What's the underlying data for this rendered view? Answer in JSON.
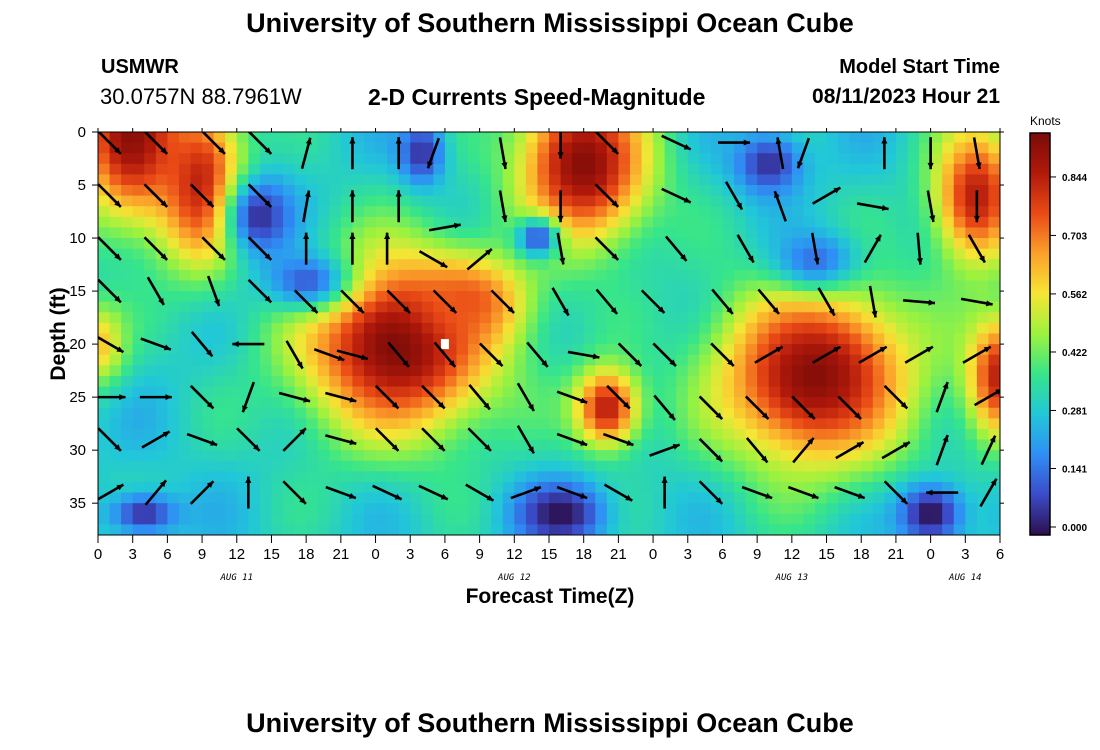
{
  "header": {
    "title": "University of Southern Mississippi Ocean Cube",
    "station": "USMWR",
    "coordinates": "30.0757N  88.7961W",
    "subtitle": "2-D Currents Speed-Magnitude",
    "model_start_label": "Model Start Time",
    "model_start_value": "08/11/2023 Hour 21"
  },
  "footer": {
    "title": "University of Southern Mississippi Ocean Cube"
  },
  "chart_data": {
    "type": "heatmap",
    "xlabel": "Forecast Time(Z)",
    "ylabel": "Depth (ft)",
    "x_tick_labels": [
      "0",
      "3",
      "6",
      "9",
      "12",
      "15",
      "18",
      "21",
      "0",
      "3",
      "6",
      "9",
      "12",
      "15",
      "18",
      "21",
      "0",
      "3",
      "6",
      "9",
      "12",
      "15",
      "18",
      "21",
      "0",
      "3",
      "6"
    ],
    "day_labels": [
      {
        "label": "AUG 11",
        "at_tick": 4
      },
      {
        "label": "AUG 12",
        "at_tick": 12
      },
      {
        "label": "AUG 13",
        "at_tick": 20
      },
      {
        "label": "AUG 14",
        "at_tick": 25
      }
    ],
    "xlim_hours": [
      0,
      78
    ],
    "y_ticks": [
      0,
      5,
      10,
      15,
      20,
      25,
      30,
      35
    ],
    "ylim": [
      0,
      38
    ],
    "y_inverted": true,
    "colorbar": {
      "unit": "Knots",
      "ticks": [
        "0.844",
        "0.703",
        "0.562",
        "0.422",
        "0.281",
        "0.141",
        "0.000"
      ],
      "tick_values": [
        0.844,
        0.703,
        0.562,
        0.422,
        0.281,
        0.141,
        0.0
      ],
      "range": [
        0,
        0.95
      ],
      "colors": [
        "#2c0f4d",
        "#3b4bc9",
        "#2f8ef5",
        "#21c7d8",
        "#37e58a",
        "#9cf23e",
        "#f6e534",
        "#fba12b",
        "#ea4a16",
        "#b2190b",
        "#7a0b07"
      ]
    },
    "hot_spots": [
      {
        "t": 3,
        "d": 0,
        "speed": 0.93,
        "rt": 5,
        "rd": 9
      },
      {
        "t": 9,
        "d": 5,
        "speed": 0.85,
        "rt": 4,
        "rd": 8
      },
      {
        "t": 0,
        "d": 20,
        "speed": 0.62,
        "rt": 2.5,
        "rd": 4
      },
      {
        "t": 26,
        "d": 20,
        "speed": 0.95,
        "rt": 9,
        "rd": 9
      },
      {
        "t": 32,
        "d": 16,
        "speed": 0.75,
        "rt": 5,
        "rd": 4
      },
      {
        "t": 42,
        "d": 3,
        "speed": 0.93,
        "rt": 6,
        "rd": 8
      },
      {
        "t": 44,
        "d": 26,
        "speed": 0.85,
        "rt": 3,
        "rd": 4
      },
      {
        "t": 62,
        "d": 23,
        "speed": 0.93,
        "rt": 9,
        "rd": 9
      },
      {
        "t": 76,
        "d": 6,
        "speed": 0.85,
        "rt": 4,
        "rd": 7
      },
      {
        "t": 78,
        "d": 23,
        "speed": 0.85,
        "rt": 3,
        "rd": 6
      },
      {
        "t": 14,
        "d": 8,
        "speed": 0.05,
        "rt": 3,
        "rd": 4
      },
      {
        "t": 18,
        "d": 14,
        "speed": 0.12,
        "rt": 4,
        "rd": 3
      },
      {
        "t": 28,
        "d": 2,
        "speed": 0.05,
        "rt": 2,
        "rd": 3
      },
      {
        "t": 38,
        "d": 10,
        "speed": 0.1,
        "rt": 2,
        "rd": 2
      },
      {
        "t": 40,
        "d": 36,
        "speed": 0.0,
        "rt": 4,
        "rd": 3
      },
      {
        "t": 58,
        "d": 3,
        "speed": 0.05,
        "rt": 3,
        "rd": 3
      },
      {
        "t": 72,
        "d": 36,
        "speed": 0.0,
        "rt": 3,
        "rd": 3
      },
      {
        "t": 4,
        "d": 36,
        "speed": 0.05,
        "rt": 3,
        "rd": 2
      },
      {
        "t": 62,
        "d": 12,
        "speed": 0.15,
        "rt": 4,
        "rd": 3
      }
    ],
    "vectors": [
      {
        "t": 1,
        "d": 1,
        "dir": 135
      },
      {
        "t": 5,
        "d": 1,
        "dir": 135
      },
      {
        "t": 10,
        "d": 1,
        "dir": 135
      },
      {
        "t": 14,
        "d": 1,
        "dir": 135
      },
      {
        "t": 18,
        "d": 2,
        "dir": 15
      },
      {
        "t": 22,
        "d": 2,
        "dir": 0
      },
      {
        "t": 26,
        "d": 2,
        "dir": 0
      },
      {
        "t": 29,
        "d": 2,
        "dir": 200
      },
      {
        "t": 35,
        "d": 2,
        "dir": 170
      },
      {
        "t": 40,
        "d": 1,
        "dir": 180
      },
      {
        "t": 44,
        "d": 1,
        "dir": 135
      },
      {
        "t": 50,
        "d": 1,
        "dir": 115
      },
      {
        "t": 55,
        "d": 1,
        "dir": 90
      },
      {
        "t": 59,
        "d": 2,
        "dir": 350
      },
      {
        "t": 61,
        "d": 2,
        "dir": 200
      },
      {
        "t": 68,
        "d": 2,
        "dir": 0
      },
      {
        "t": 72,
        "d": 2,
        "dir": 180
      },
      {
        "t": 76,
        "d": 2,
        "dir": 170
      },
      {
        "t": 1,
        "d": 6,
        "dir": 135
      },
      {
        "t": 5,
        "d": 6,
        "dir": 135
      },
      {
        "t": 9,
        "d": 6,
        "dir": 135
      },
      {
        "t": 14,
        "d": 6,
        "dir": 135
      },
      {
        "t": 18,
        "d": 7,
        "dir": 10
      },
      {
        "t": 22,
        "d": 7,
        "dir": 0
      },
      {
        "t": 26,
        "d": 7,
        "dir": 0
      },
      {
        "t": 30,
        "d": 9,
        "dir": 80
      },
      {
        "t": 35,
        "d": 7,
        "dir": 170
      },
      {
        "t": 40,
        "d": 7,
        "dir": 180
      },
      {
        "t": 44,
        "d": 6,
        "dir": 135
      },
      {
        "t": 50,
        "d": 6,
        "dir": 115
      },
      {
        "t": 55,
        "d": 6,
        "dir": 150
      },
      {
        "t": 59,
        "d": 7,
        "dir": 340
      },
      {
        "t": 63,
        "d": 6,
        "dir": 60
      },
      {
        "t": 67,
        "d": 7,
        "dir": 100
      },
      {
        "t": 72,
        "d": 7,
        "dir": 170
      },
      {
        "t": 76,
        "d": 7,
        "dir": 180
      },
      {
        "t": 1,
        "d": 11,
        "dir": 135
      },
      {
        "t": 5,
        "d": 11,
        "dir": 135
      },
      {
        "t": 10,
        "d": 11,
        "dir": 135
      },
      {
        "t": 14,
        "d": 11,
        "dir": 135
      },
      {
        "t": 18,
        "d": 11,
        "dir": 0
      },
      {
        "t": 22,
        "d": 11,
        "dir": 0
      },
      {
        "t": 25,
        "d": 11,
        "dir": 0
      },
      {
        "t": 29,
        "d": 12,
        "dir": 120
      },
      {
        "t": 33,
        "d": 12,
        "dir": 50
      },
      {
        "t": 40,
        "d": 11,
        "dir": 170
      },
      {
        "t": 44,
        "d": 11,
        "dir": 135
      },
      {
        "t": 50,
        "d": 11,
        "dir": 140
      },
      {
        "t": 56,
        "d": 11,
        "dir": 150
      },
      {
        "t": 62,
        "d": 11,
        "dir": 170
      },
      {
        "t": 67,
        "d": 11,
        "dir": 30
      },
      {
        "t": 71,
        "d": 11,
        "dir": 175
      },
      {
        "t": 76,
        "d": 11,
        "dir": 150
      },
      {
        "t": 1,
        "d": 15,
        "dir": 135
      },
      {
        "t": 5,
        "d": 15,
        "dir": 150
      },
      {
        "t": 10,
        "d": 15,
        "dir": 160
      },
      {
        "t": 14,
        "d": 15,
        "dir": 135
      },
      {
        "t": 18,
        "d": 16,
        "dir": 135
      },
      {
        "t": 22,
        "d": 16,
        "dir": 135
      },
      {
        "t": 26,
        "d": 16,
        "dir": 135
      },
      {
        "t": 30,
        "d": 16,
        "dir": 135
      },
      {
        "t": 35,
        "d": 16,
        "dir": 135
      },
      {
        "t": 40,
        "d": 16,
        "dir": 150
      },
      {
        "t": 44,
        "d": 16,
        "dir": 140
      },
      {
        "t": 48,
        "d": 16,
        "dir": 135
      },
      {
        "t": 54,
        "d": 16,
        "dir": 140
      },
      {
        "t": 58,
        "d": 16,
        "dir": 140
      },
      {
        "t": 63,
        "d": 16,
        "dir": 150
      },
      {
        "t": 67,
        "d": 16,
        "dir": 170
      },
      {
        "t": 71,
        "d": 16,
        "dir": 95
      },
      {
        "t": 76,
        "d": 16,
        "dir": 100
      },
      {
        "t": 1,
        "d": 20,
        "dir": 120
      },
      {
        "t": 5,
        "d": 20,
        "dir": 110
      },
      {
        "t": 9,
        "d": 20,
        "dir": 140
      },
      {
        "t": 13,
        "d": 20,
        "dir": 270
      },
      {
        "t": 17,
        "d": 21,
        "dir": 150
      },
      {
        "t": 20,
        "d": 21,
        "dir": 110
      },
      {
        "t": 22,
        "d": 21,
        "dir": 105
      },
      {
        "t": 26,
        "d": 21,
        "dir": 140
      },
      {
        "t": 30,
        "d": 21,
        "dir": 140
      },
      {
        "t": 34,
        "d": 21,
        "dir": 135
      },
      {
        "t": 38,
        "d": 21,
        "dir": 140
      },
      {
        "t": 42,
        "d": 21,
        "dir": 100
      },
      {
        "t": 46,
        "d": 21,
        "dir": 135
      },
      {
        "t": 49,
        "d": 21,
        "dir": 135
      },
      {
        "t": 54,
        "d": 21,
        "dir": 135
      },
      {
        "t": 58,
        "d": 21,
        "dir": 60
      },
      {
        "t": 63,
        "d": 21,
        "dir": 60
      },
      {
        "t": 67,
        "d": 21,
        "dir": 60
      },
      {
        "t": 71,
        "d": 21,
        "dir": 60
      },
      {
        "t": 76,
        "d": 21,
        "dir": 60
      },
      {
        "t": 1,
        "d": 25,
        "dir": 90
      },
      {
        "t": 5,
        "d": 25,
        "dir": 90
      },
      {
        "t": 9,
        "d": 25,
        "dir": 135
      },
      {
        "t": 13,
        "d": 25,
        "dir": 200
      },
      {
        "t": 17,
        "d": 25,
        "dir": 105
      },
      {
        "t": 21,
        "d": 25,
        "dir": 105
      },
      {
        "t": 25,
        "d": 25,
        "dir": 135
      },
      {
        "t": 29,
        "d": 25,
        "dir": 135
      },
      {
        "t": 33,
        "d": 25,
        "dir": 140
      },
      {
        "t": 37,
        "d": 25,
        "dir": 150
      },
      {
        "t": 41,
        "d": 25,
        "dir": 110
      },
      {
        "t": 45,
        "d": 25,
        "dir": 135
      },
      {
        "t": 49,
        "d": 26,
        "dir": 140
      },
      {
        "t": 53,
        "d": 26,
        "dir": 135
      },
      {
        "t": 57,
        "d": 26,
        "dir": 135
      },
      {
        "t": 61,
        "d": 26,
        "dir": 135
      },
      {
        "t": 65,
        "d": 26,
        "dir": 135
      },
      {
        "t": 69,
        "d": 25,
        "dir": 135
      },
      {
        "t": 73,
        "d": 25,
        "dir": 20
      },
      {
        "t": 77,
        "d": 25,
        "dir": 60
      },
      {
        "t": 1,
        "d": 29,
        "dir": 135
      },
      {
        "t": 5,
        "d": 29,
        "dir": 60
      },
      {
        "t": 9,
        "d": 29,
        "dir": 110
      },
      {
        "t": 13,
        "d": 29,
        "dir": 135
      },
      {
        "t": 17,
        "d": 29,
        "dir": 45
      },
      {
        "t": 21,
        "d": 29,
        "dir": 105
      },
      {
        "t": 25,
        "d": 29,
        "dir": 135
      },
      {
        "t": 29,
        "d": 29,
        "dir": 135
      },
      {
        "t": 33,
        "d": 29,
        "dir": 135
      },
      {
        "t": 37,
        "d": 29,
        "dir": 150
      },
      {
        "t": 41,
        "d": 29,
        "dir": 110
      },
      {
        "t": 45,
        "d": 29,
        "dir": 110
      },
      {
        "t": 49,
        "d": 30,
        "dir": 70
      },
      {
        "t": 53,
        "d": 30,
        "dir": 135
      },
      {
        "t": 57,
        "d": 30,
        "dir": 140
      },
      {
        "t": 61,
        "d": 30,
        "dir": 40
      },
      {
        "t": 65,
        "d": 30,
        "dir": 60
      },
      {
        "t": 69,
        "d": 30,
        "dir": 60
      },
      {
        "t": 73,
        "d": 30,
        "dir": 20
      },
      {
        "t": 77,
        "d": 30,
        "dir": 25
      },
      {
        "t": 1,
        "d": 34,
        "dir": 60
      },
      {
        "t": 5,
        "d": 34,
        "dir": 40
      },
      {
        "t": 9,
        "d": 34,
        "dir": 45
      },
      {
        "t": 13,
        "d": 34,
        "dir": 0
      },
      {
        "t": 17,
        "d": 34,
        "dir": 135
      },
      {
        "t": 21,
        "d": 34,
        "dir": 110
      },
      {
        "t": 25,
        "d": 34,
        "dir": 115
      },
      {
        "t": 29,
        "d": 34,
        "dir": 115
      },
      {
        "t": 33,
        "d": 34,
        "dir": 120
      },
      {
        "t": 37,
        "d": 34,
        "dir": 70
      },
      {
        "t": 41,
        "d": 34,
        "dir": 110
      },
      {
        "t": 45,
        "d": 34,
        "dir": 120
      },
      {
        "t": 49,
        "d": 34,
        "dir": 0
      },
      {
        "t": 53,
        "d": 34,
        "dir": 135
      },
      {
        "t": 57,
        "d": 34,
        "dir": 110
      },
      {
        "t": 61,
        "d": 34,
        "dir": 110
      },
      {
        "t": 65,
        "d": 34,
        "dir": 110
      },
      {
        "t": 69,
        "d": 34,
        "dir": 135
      },
      {
        "t": 73,
        "d": 34,
        "dir": 270
      },
      {
        "t": 77,
        "d": 34,
        "dir": 30
      }
    ],
    "missing_marker": {
      "t": 30,
      "d": 20
    }
  }
}
